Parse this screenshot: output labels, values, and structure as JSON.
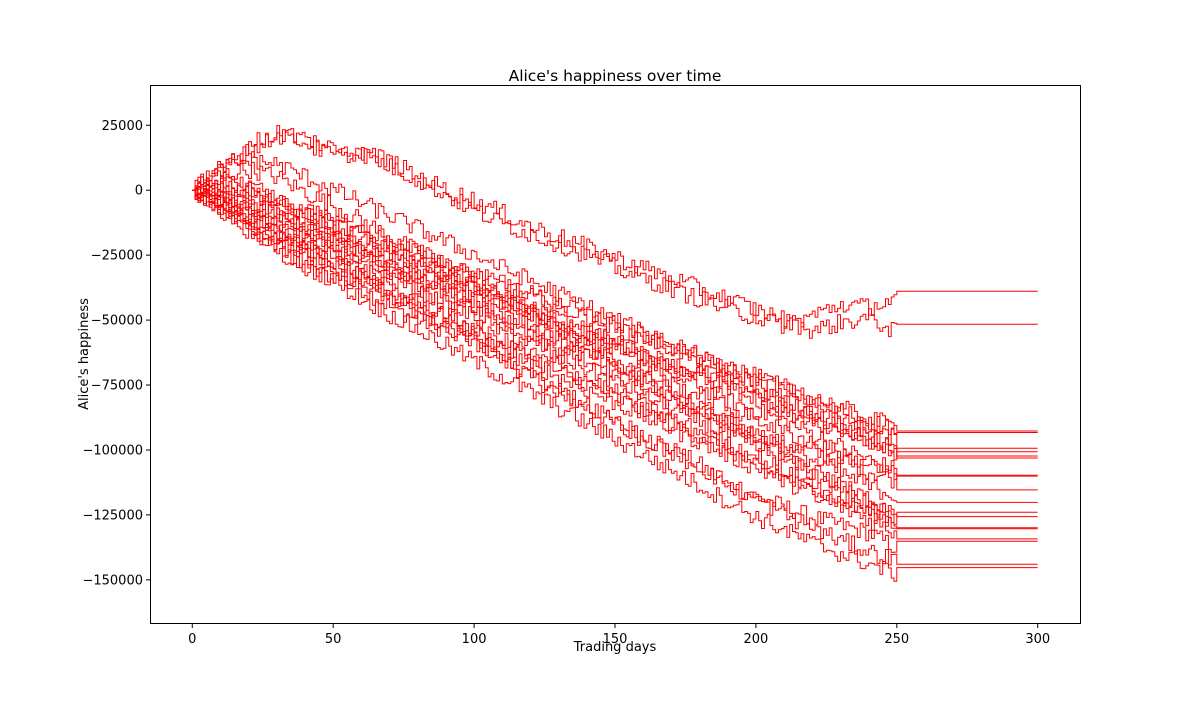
{
  "chart_data": {
    "type": "line",
    "title": "Alice's happiness over time",
    "xlabel": "Trading days",
    "ylabel": "Alice's happiness",
    "xlim": [
      -15,
      315
    ],
    "ylim": [
      -167000,
      40500
    ],
    "xticks": [
      0,
      50,
      100,
      150,
      200,
      250,
      300
    ],
    "yticks": [
      25000,
      0,
      -25000,
      -50000,
      -75000,
      -100000,
      -125000,
      -150000
    ],
    "grid": false,
    "legend": "none",
    "line_color": "#ff0000",
    "step_style": "steps-post",
    "trading_days": 250,
    "plot_end_day": 300,
    "series": [
      {
        "values": [
          0,
          -8000,
          -15000,
          -24000,
          -31000,
          -33000,
          -38000,
          -45000,
          -50000,
          -54000,
          -57000,
          -66000,
          -72000,
          -78000,
          -84000,
          -90000,
          -96000,
          -100000,
          -106000,
          -114000,
          -118000,
          -122000,
          -126000,
          -129000,
          -132000,
          -138000
        ]
      },
      {
        "values": [
          0,
          -5000,
          -10000,
          -18000,
          -22000,
          -26000,
          -30000,
          -35000,
          -38000,
          -42000,
          -46000,
          -51000,
          -56000,
          -61000,
          -65000,
          -70000,
          -76000,
          -82000,
          -86000,
          -90000,
          -94000,
          -98000,
          -101000,
          -104000,
          -108000,
          -112000
        ]
      },
      {
        "values": [
          0,
          -3000,
          -8000,
          -13000,
          -17000,
          -20000,
          -25000,
          -29000,
          -33000,
          -37000,
          -41000,
          -44000,
          -48000,
          -53000,
          -57000,
          -61000,
          -65000,
          -69000,
          -72000,
          -76000,
          -80000,
          -84000,
          -88000,
          -92000,
          -96000,
          -100000
        ]
      },
      {
        "values": [
          0,
          4000,
          2000,
          -3000,
          -9000,
          -14000,
          -19000,
          -24000,
          -28000,
          -33000,
          -38000,
          -42000,
          -47000,
          -52000,
          -57000,
          -62000,
          -66000,
          -71000,
          -76000,
          -81000,
          -85000,
          -89000,
          -94000,
          -99000,
          -104000,
          -108000
        ]
      },
      {
        "values": [
          0,
          6000,
          8000,
          5000,
          -1000,
          -6000,
          -12000,
          -18000,
          -24000,
          -30000,
          -36000,
          -42000,
          -48000,
          -54000,
          -60000,
          -66000,
          -72000,
          -78000,
          -84000,
          -90000,
          -96000,
          -102000,
          -108000,
          -114000,
          -120000,
          -126000
        ]
      },
      {
        "values": [
          0,
          -6000,
          -13000,
          -19000,
          -23000,
          -28000,
          -34000,
          -40000,
          -44000,
          -49000,
          -55000,
          -60000,
          -65000,
          -70000,
          -75000,
          -80000,
          -85000,
          -90000,
          -95000,
          -100000,
          -106000,
          -111000,
          -116000,
          -120000,
          -124000,
          -128000
        ]
      },
      {
        "values": [
          0,
          -2000,
          -6000,
          -9000,
          -14000,
          -18000,
          -23000,
          -27000,
          -31000,
          -35000,
          -39000,
          -43000,
          -47000,
          -51000,
          -55000,
          -59000,
          -63000,
          -67000,
          -70000,
          -74000,
          -78000,
          -82000,
          -86000,
          -89000,
          -93000,
          -96000
        ]
      },
      {
        "values": [
          0,
          -7000,
          -14000,
          -20000,
          -26000,
          -32000,
          -37000,
          -42000,
          -47000,
          -52000,
          -57000,
          -62000,
          -67000,
          -72000,
          -77000,
          -82000,
          -87000,
          -92000,
          -97000,
          -102000,
          -107000,
          -112000,
          -117000,
          -122000,
          -127000,
          -132000
        ]
      },
      {
        "values": [
          0,
          2000,
          -1000,
          -5000,
          -9000,
          -13000,
          -17000,
          -21000,
          -25000,
          -29000,
          -33000,
          -37000,
          -41000,
          -45000,
          -49000,
          -53000,
          -57000,
          -61000,
          -65000,
          -69000,
          -73000,
          -77000,
          -81000,
          -85000,
          -89000,
          -92000
        ]
      },
      {
        "values": [
          0,
          -4000,
          -9000,
          -15000,
          -20000,
          -24000,
          -29000,
          -34000,
          -39000,
          -44000,
          -49000,
          -54000,
          -59000,
          -64000,
          -69000,
          -74000,
          -79000,
          -84000,
          -89000,
          -94000,
          -99000,
          -104000,
          -109000,
          -114000,
          -119000,
          -124000
        ]
      },
      {
        "values": [
          0,
          7000,
          12000,
          10000,
          5000,
          0,
          -5000,
          -10000,
          -15000,
          -20000,
          -25000,
          -30000,
          -35000,
          -40000,
          -45000,
          -50000,
          -55000,
          -60000,
          -65000,
          -70000,
          -75000,
          -80000,
          -85000,
          -90000,
          -95000,
          -100000
        ]
      },
      {
        "values": [
          0,
          -1000,
          -5000,
          -10000,
          -14000,
          -19000,
          -24000,
          -29000,
          -34000,
          -39000,
          -44000,
          -49000,
          -54000,
          -59000,
          -64000,
          -69000,
          -74000,
          -79000,
          -84000,
          -89000,
          -94000,
          -99000,
          -104000,
          -109000,
          -114000,
          -118000
        ]
      },
      {
        "values": [
          0,
          -8000,
          -16000,
          -22000,
          -29000,
          -35000,
          -42000,
          -48000,
          -54000,
          -60000,
          -66000,
          -72000,
          -78000,
          -84000,
          -90000,
          -96000,
          -102000,
          -108000,
          -114000,
          -120000,
          -126000,
          -131000,
          -136000,
          -140000,
          -144000,
          -148000
        ]
      },
      {
        "values": [
          0,
          3000,
          0,
          -4000,
          -8000,
          -12000,
          -16000,
          -20000,
          -24000,
          -28000,
          -32000,
          -36000,
          -40000,
          -44000,
          -48000,
          -52000,
          -56000,
          -60000,
          -64000,
          -68000,
          -72000,
          -76000,
          -80000,
          -84000,
          -88000,
          -91000
        ]
      },
      {
        "values": [
          0,
          -5000,
          -11000,
          -16000,
          -22000,
          -27000,
          -33000,
          -38000,
          -43000,
          -48000,
          -53000,
          -58000,
          -63000,
          -68000,
          -73000,
          -78000,
          -83000,
          -88000,
          -93000,
          -98000,
          -103000,
          -108000,
          -113000,
          -118000,
          -123000,
          -128000
        ]
      },
      {
        "values": [
          0,
          9000,
          15000,
          21000,
          20000,
          16000,
          14000,
          9000,
          4000,
          -2000,
          -8000,
          -13000,
          -17000,
          -21000,
          -25000,
          -30000,
          -34000,
          -38000,
          -42000,
          -46000,
          -49000,
          -52000,
          -48000,
          -44000,
          -45000,
          -42000
        ]
      },
      {
        "values": [
          0,
          10000,
          17000,
          23000,
          18000,
          13000,
          15000,
          11000,
          5000,
          0,
          -4000,
          -9000,
          -14000,
          -18000,
          -22000,
          -26000,
          -30000,
          -34000,
          -38000,
          -42000,
          -46000,
          -50000,
          -54000,
          -51000,
          -49000,
          -55000
        ]
      },
      {
        "values": [
          0,
          -3000,
          -7000,
          -12000,
          -16000,
          -21000,
          -25000,
          -30000,
          -34000,
          -39000,
          -43000,
          -48000,
          -52000,
          -57000,
          -61000,
          -66000,
          -70000,
          -75000,
          -79000,
          -84000,
          -88000,
          -93000,
          -97000,
          -102000,
          -106000,
          -110000
        ]
      },
      {
        "values": [
          0,
          -6000,
          -12000,
          -17000,
          -23000,
          -29000,
          -35000,
          -41000,
          -47000,
          -53000,
          -59000,
          -65000,
          -71000,
          -77000,
          -83000,
          -89000,
          -95000,
          -101000,
          -107000,
          -113000,
          -119000,
          -125000,
          -130000,
          -135000,
          -139000,
          -143000
        ]
      },
      {
        "values": [
          0,
          1000,
          -2000,
          -7000,
          -11000,
          -15000,
          -20000,
          -24000,
          -28000,
          -33000,
          -37000,
          -41000,
          -46000,
          -50000,
          -54000,
          -59000,
          -63000,
          -67000,
          -72000,
          -76000,
          -80000,
          -85000,
          -89000,
          -93000,
          -97000,
          -101000
        ]
      }
    ]
  }
}
